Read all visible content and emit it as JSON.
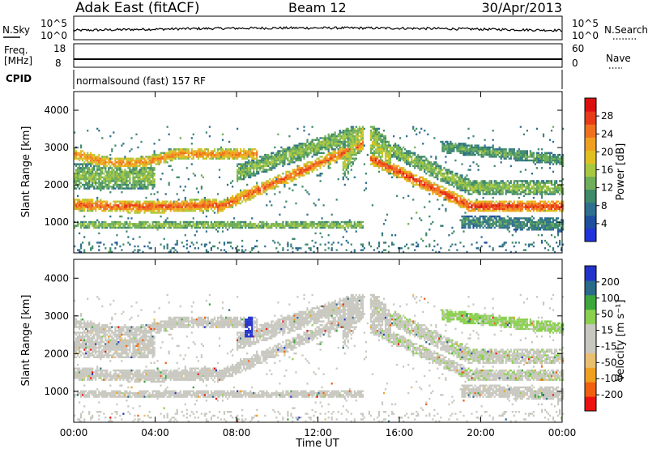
{
  "header": {
    "title": "Adak East (fitACF)",
    "beam": "Beam 12",
    "date": "30/Apr/2013"
  },
  "top_panels": {
    "noise": {
      "left_label": "N.Sky",
      "right_label": "N.Search",
      "left_ticks": [
        "10^5",
        "10^0"
      ],
      "right_ticks": [
        "10^5",
        "10^0"
      ]
    },
    "freq": {
      "left_label_1": "Freq.",
      "left_label_2": "[MHz]",
      "right_label": "Nave",
      "left_ticks": [
        "18",
        "8"
      ],
      "right_ticks": [
        "60",
        "0"
      ]
    },
    "cpid": {
      "label": "CPID",
      "text": "normalsound (fast) 157 RF"
    }
  },
  "chart_data": [
    {
      "type": "heatmap",
      "name": "power",
      "ylabel": "Slant Range [km]",
      "yticks": [
        "4000",
        "3000",
        "2000",
        "1000"
      ],
      "ylim": [
        180,
        4500
      ],
      "colorbar": {
        "label": "Power [dB]",
        "ticks": [
          "28",
          "24",
          "20",
          "16",
          "12",
          "8",
          "4"
        ],
        "range": [
          0,
          32
        ],
        "colors": [
          "#2233dd",
          "#1e4fa0",
          "#2f6f8f",
          "#3f8a6a",
          "#6fae5a",
          "#a8c840",
          "#e0c020",
          "#f0a020",
          "#f07020",
          "#e83a18",
          "#dd1010"
        ]
      }
    },
    {
      "type": "heatmap",
      "name": "velocity",
      "ylabel": "Slant Range [km]",
      "yticks": [
        "4000",
        "3000",
        "2000",
        "1000"
      ],
      "ylim": [
        180,
        4500
      ],
      "xlabel": "Time UT",
      "xticks": [
        "00:00",
        "04:00",
        "08:00",
        "12:00",
        "16:00",
        "20:00",
        "00:00"
      ],
      "xlim": [
        0,
        24
      ],
      "colorbar": {
        "label": "Velocity [m s⁻¹]",
        "ticks": [
          "200",
          "100",
          "50",
          "15",
          "-15",
          "-50",
          "-100",
          "-200"
        ],
        "range": [
          -250,
          250
        ],
        "colors": [
          "#ee1111",
          "#f06010",
          "#f0a020",
          "#e8c070",
          "#c8c8c0",
          "#c8c8c0",
          "#8cd050",
          "#3aa83a",
          "#2a6a8a",
          "#2233cc"
        ]
      }
    }
  ]
}
